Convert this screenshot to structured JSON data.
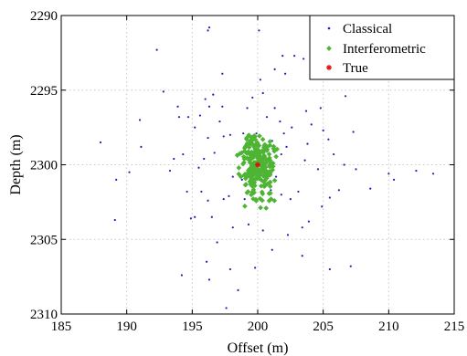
{
  "chart_data": {
    "type": "scatter",
    "title": "",
    "xlabel": "Offset (m)",
    "ylabel": "Depth (m)",
    "xlim": [
      185,
      215
    ],
    "ylim": [
      2310,
      2290
    ],
    "y_axis_inverted": true,
    "x_ticks": [
      "185",
      "190",
      "195",
      "200",
      "205",
      "210",
      "215"
    ],
    "y_ticks": [
      "2290",
      "2295",
      "2300",
      "2305",
      "2310"
    ],
    "grid": true,
    "legend_position": "top-right",
    "series": [
      {
        "name": "Classical",
        "marker": "dot",
        "color": "#1f1fb4",
        "points": [
          [
            196.3,
            2290.8
          ],
          [
            196.2,
            2291.0
          ],
          [
            200.1,
            2291.0
          ],
          [
            192.3,
            2292.3
          ],
          [
            201.9,
            2292.7
          ],
          [
            202.8,
            2292.7
          ],
          [
            203.5,
            2292.9
          ],
          [
            197.3,
            2293.9
          ],
          [
            201.3,
            2293.6
          ],
          [
            202.1,
            2293.9
          ],
          [
            188.0,
            2298.5
          ],
          [
            189.2,
            2301.0
          ],
          [
            189.1,
            2303.7
          ],
          [
            191.0,
            2297.0
          ],
          [
            191.1,
            2298.8
          ],
          [
            190.2,
            2300.5
          ],
          [
            192.8,
            2295.1
          ],
          [
            193.9,
            2296.1
          ],
          [
            194.7,
            2296.8
          ],
          [
            193.6,
            2299.6
          ],
          [
            194.3,
            2299.3
          ],
          [
            193.3,
            2300.4
          ],
          [
            195.2,
            2297.5
          ],
          [
            195.6,
            2296.7
          ],
          [
            196.3,
            2296.1
          ],
          [
            196.0,
            2295.6
          ],
          [
            196.6,
            2295.3
          ],
          [
            197.1,
            2297.1
          ],
          [
            197.3,
            2296.1
          ],
          [
            196.2,
            2298.2
          ],
          [
            197.4,
            2298.1
          ],
          [
            196.7,
            2299.2
          ],
          [
            195.5,
            2300.2
          ],
          [
            194.6,
            2301.8
          ],
          [
            195.7,
            2301.8
          ],
          [
            196.2,
            2302.4
          ],
          [
            195.2,
            2303.5
          ],
          [
            194.9,
            2303.6
          ],
          [
            196.5,
            2303.5
          ],
          [
            197.4,
            2302.3
          ],
          [
            197.8,
            2302.1
          ],
          [
            198.1,
            2300.8
          ],
          [
            198.4,
            2299.3
          ],
          [
            198.9,
            2297.9
          ],
          [
            199.2,
            2296.2
          ],
          [
            199.6,
            2295.5
          ],
          [
            200.4,
            2295.2
          ],
          [
            201.3,
            2296.2
          ],
          [
            201.7,
            2297.1
          ],
          [
            202.0,
            2297.9
          ],
          [
            202.6,
            2297.5
          ],
          [
            202.2,
            2298.8
          ],
          [
            201.8,
            2299.3
          ],
          [
            201.4,
            2300.8
          ],
          [
            201.8,
            2302.0
          ],
          [
            202.5,
            2302.3
          ],
          [
            203.1,
            2301.8
          ],
          [
            203.6,
            2299.7
          ],
          [
            203.8,
            2298.6
          ],
          [
            204.1,
            2297.3
          ],
          [
            204.8,
            2296.2
          ],
          [
            203.7,
            2296.4
          ],
          [
            205.0,
            2297.7
          ],
          [
            205.4,
            2298.3
          ],
          [
            204.6,
            2300.3
          ],
          [
            205.8,
            2299.3
          ],
          [
            206.6,
            2300.0
          ],
          [
            206.2,
            2301.7
          ],
          [
            205.5,
            2302.2
          ],
          [
            204.9,
            2302.8
          ],
          [
            203.9,
            2303.8
          ],
          [
            202.3,
            2304.7
          ],
          [
            200.4,
            2304.4
          ],
          [
            199.3,
            2304.0
          ],
          [
            198.1,
            2304.2
          ],
          [
            196.9,
            2305.2
          ],
          [
            196.1,
            2306.5
          ],
          [
            196.3,
            2307.7
          ],
          [
            197.9,
            2307.0
          ],
          [
            198.5,
            2308.4
          ],
          [
            197.6,
            2309.6
          ],
          [
            203.4,
            2306.1
          ],
          [
            205.5,
            2307.0
          ],
          [
            207.1,
            2306.8
          ],
          [
            207.5,
            2300.3
          ],
          [
            206.7,
            2295.4
          ],
          [
            207.3,
            2297.8
          ],
          [
            208.6,
            2301.6
          ],
          [
            210.0,
            2300.6
          ],
          [
            210.4,
            2301.0
          ],
          [
            212.1,
            2300.4
          ],
          [
            213.4,
            2300.6
          ],
          [
            198.8,
            2301.0
          ],
          [
            199.0,
            2302.3
          ],
          [
            201.0,
            2301.7
          ],
          [
            200.7,
            2296.8
          ],
          [
            199.9,
            2297.9
          ],
          [
            200.2,
            2294.3
          ],
          [
            201.1,
            2298.4
          ],
          [
            197.9,
            2298.0
          ],
          [
            195.9,
            2299.6
          ],
          [
            194.0,
            2296.8
          ],
          [
            203.4,
            2304.2
          ],
          [
            201.1,
            2305.7
          ],
          [
            199.8,
            2306.9
          ],
          [
            194.2,
            2307.4
          ]
        ]
      },
      {
        "name": "Interferometric",
        "marker": "diamond",
        "color": "#4fb434",
        "cluster": {
          "center": [
            200.0,
            2300.0
          ],
          "spread": [
            0.7,
            1.1
          ],
          "count": 260,
          "x_range": [
            198.2,
            201.7
          ],
          "y_range": [
            2298.0,
            2303.0
          ]
        }
      },
      {
        "name": "True",
        "marker": "asterisk",
        "color": "#dd1111",
        "points": [
          [
            200.0,
            2300.0
          ]
        ]
      }
    ]
  }
}
